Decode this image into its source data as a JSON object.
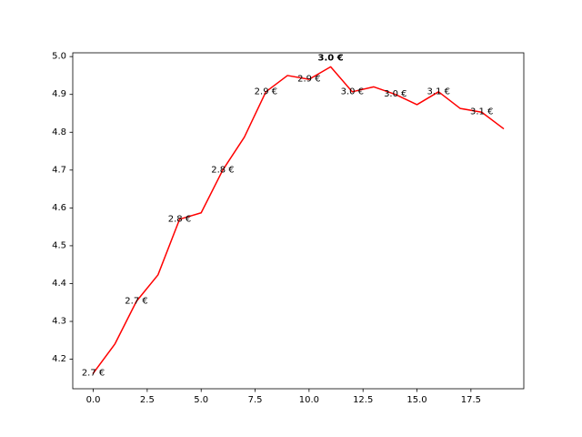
{
  "chart_data": {
    "type": "line",
    "title": "",
    "xlabel": "",
    "ylabel": "",
    "xlim": [
      -0.95,
      19.95
    ],
    "ylim": [
      4.122,
      5.01
    ],
    "x_ticks": [
      0.0,
      2.5,
      5.0,
      7.5,
      10.0,
      12.5,
      15.0,
      17.5
    ],
    "x_tick_labels": [
      "0.0",
      "2.5",
      "5.0",
      "7.5",
      "10.0",
      "12.5",
      "15.0",
      "17.5"
    ],
    "y_ticks": [
      4.2,
      4.3,
      4.4,
      4.5,
      4.6,
      4.7,
      4.8,
      4.9,
      5.0
    ],
    "y_tick_labels": [
      "4.2",
      "4.3",
      "4.4",
      "4.5",
      "4.6",
      "4.7",
      "4.8",
      "4.9",
      "5.0"
    ],
    "grid": false,
    "line_color": "#ff0000",
    "series": [
      {
        "x": [
          0,
          1,
          2,
          3,
          4,
          5,
          6,
          7,
          8,
          9,
          10,
          11,
          12,
          13,
          14,
          15,
          16,
          17,
          18,
          19
        ],
        "values": [
          4.163,
          4.24,
          4.353,
          4.423,
          4.57,
          4.587,
          4.7,
          4.787,
          4.907,
          4.95,
          4.94,
          4.973,
          4.907,
          4.92,
          4.9,
          4.873,
          4.907,
          4.863,
          4.853,
          4.81
        ]
      }
    ],
    "annotations": [
      {
        "x": 0,
        "y": 4.163,
        "text": "2.7 €",
        "bold": false
      },
      {
        "x": 2,
        "y": 4.353,
        "text": "2.7 €",
        "bold": false
      },
      {
        "x": 4,
        "y": 4.57,
        "text": "2.8 €",
        "bold": false
      },
      {
        "x": 6,
        "y": 4.7,
        "text": "2.8 €",
        "bold": false
      },
      {
        "x": 8,
        "y": 4.907,
        "text": "2.9 €",
        "bold": false
      },
      {
        "x": 10,
        "y": 4.94,
        "text": "2.9 €",
        "bold": false
      },
      {
        "x": 11,
        "y": 4.996,
        "text": "3.0 €",
        "bold": true
      },
      {
        "x": 12,
        "y": 4.907,
        "text": "3.0 €",
        "bold": false
      },
      {
        "x": 14,
        "y": 4.9,
        "text": "3.0 €",
        "bold": false
      },
      {
        "x": 16,
        "y": 4.907,
        "text": "3.1 €",
        "bold": false
      },
      {
        "x": 18,
        "y": 4.853,
        "text": "3.1 €",
        "bold": false
      }
    ]
  }
}
